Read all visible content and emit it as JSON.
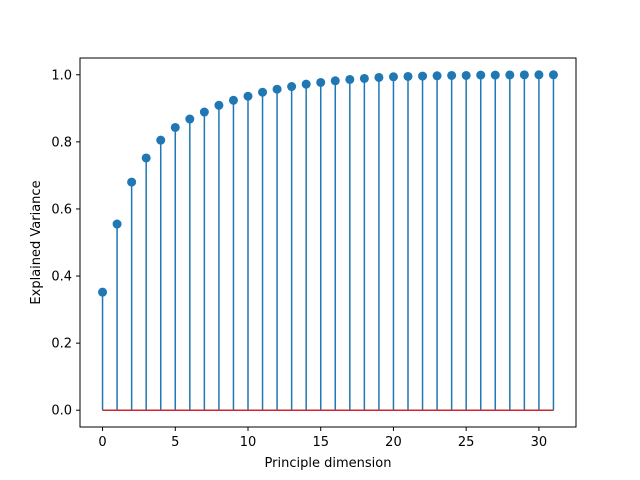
{
  "chart_data": {
    "type": "stem",
    "title": "",
    "xlabel": "Principle dimension",
    "ylabel": "Explained Variance",
    "x": [
      0,
      1,
      2,
      3,
      4,
      5,
      6,
      7,
      8,
      9,
      10,
      11,
      12,
      13,
      14,
      15,
      16,
      17,
      18,
      19,
      20,
      21,
      22,
      23,
      24,
      25,
      26,
      27,
      28,
      29,
      30,
      31
    ],
    "values": [
      0.352,
      0.555,
      0.68,
      0.752,
      0.805,
      0.843,
      0.868,
      0.889,
      0.909,
      0.924,
      0.936,
      0.948,
      0.957,
      0.965,
      0.972,
      0.977,
      0.982,
      0.986,
      0.989,
      0.992,
      0.994,
      0.995,
      0.996,
      0.997,
      0.998,
      0.998,
      0.999,
      0.999,
      0.9995,
      0.9998,
      0.9999,
      1.0
    ],
    "xlim": [
      -1.55,
      32.55
    ],
    "ylim": [
      -0.05,
      1.05
    ],
    "xticks": [
      0,
      5,
      10,
      15,
      20,
      25,
      30
    ],
    "yticks": [
      0.0,
      0.2,
      0.4,
      0.6,
      0.8,
      1.0
    ],
    "xtick_labels": [
      "0",
      "5",
      "10",
      "15",
      "20",
      "25",
      "30"
    ],
    "ytick_labels": [
      "0.0",
      "0.2",
      "0.4",
      "0.6",
      "0.8",
      "1.0"
    ],
    "grid": false,
    "colors": {
      "stem": "#1f77b4",
      "marker": "#1f77b4",
      "baseline": "#d62728"
    }
  }
}
